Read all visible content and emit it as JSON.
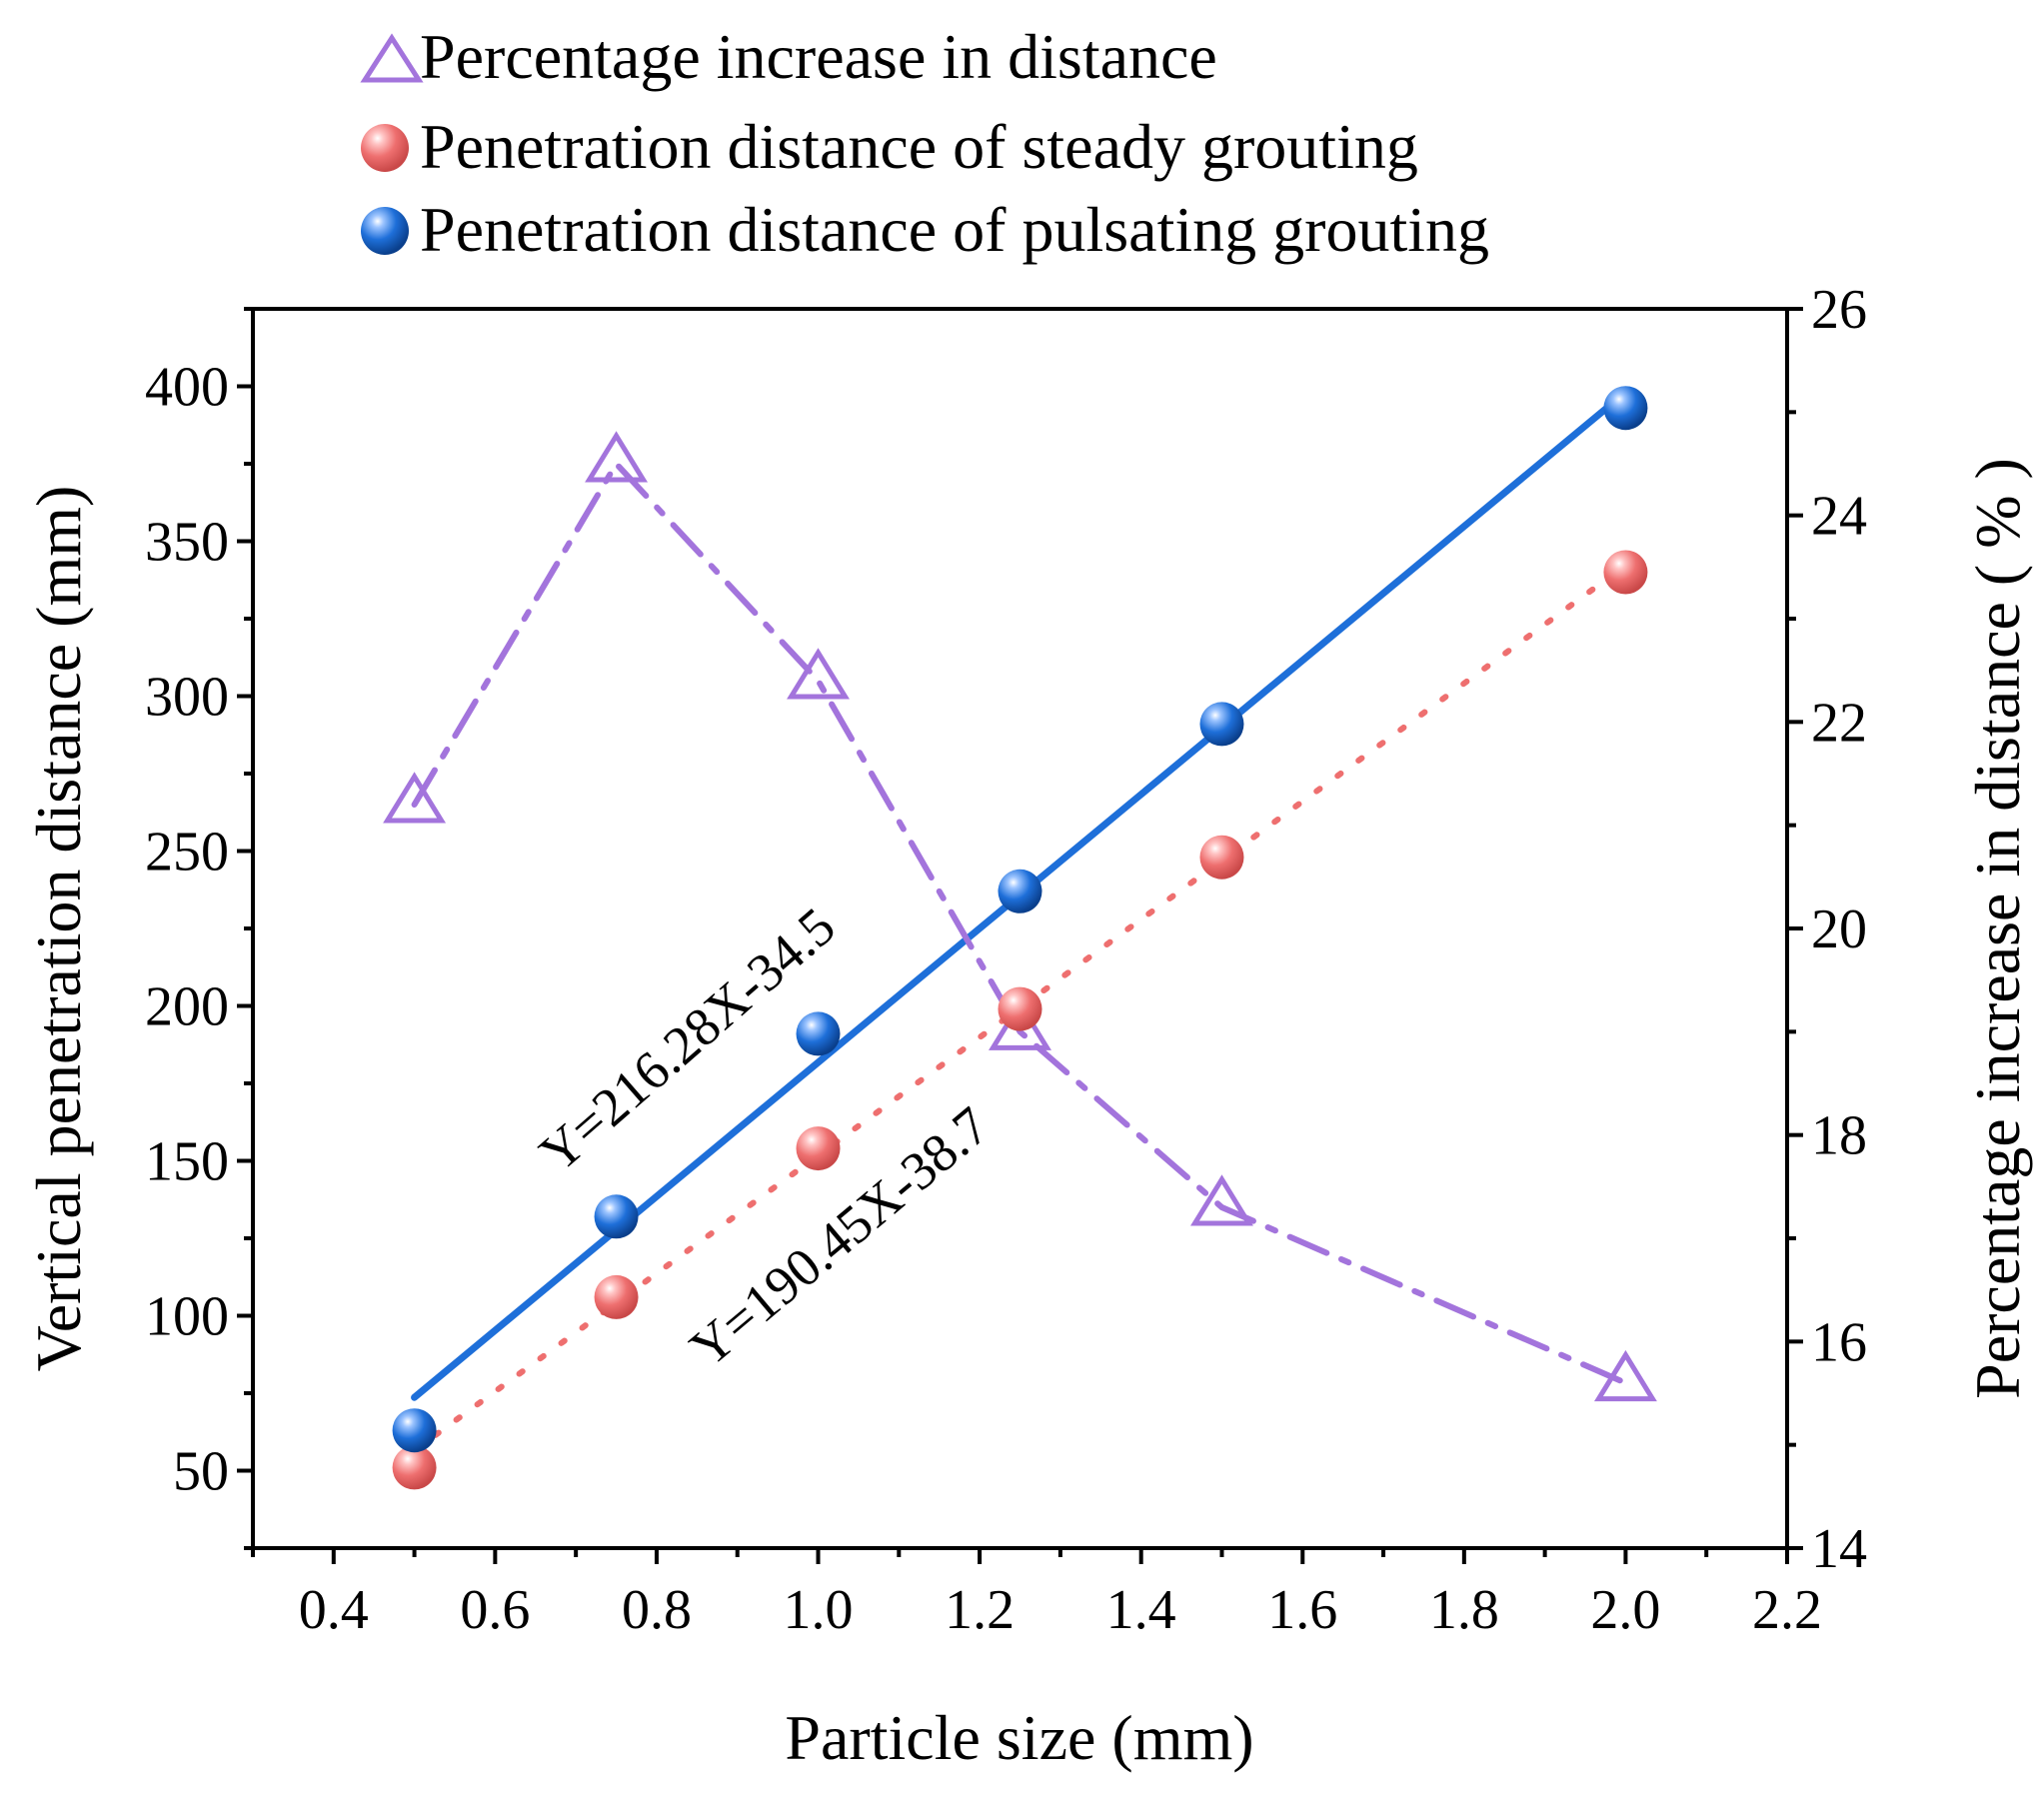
{
  "chart_data": {
    "type": "line",
    "xlabel": "Particle size (mm)",
    "ylabel": "Vertical penetration distance (mm)",
    "y2label": "Percentage increase in distance ( % )",
    "xlim": [
      0.3,
      2.2
    ],
    "ylim": [
      25,
      425
    ],
    "y2lim": [
      14,
      26
    ],
    "xticks": [
      0.4,
      0.6,
      0.8,
      1.0,
      1.2,
      1.4,
      1.6,
      1.8,
      2.0,
      2.2
    ],
    "xtick_labels": [
      "0.4",
      "0.6",
      "0.8",
      "1.0",
      "1.2",
      "1.4",
      "1.6",
      "1.8",
      "2.0",
      "2.2"
    ],
    "yticks": [
      50,
      100,
      150,
      200,
      250,
      300,
      350,
      400
    ],
    "ytick_labels": [
      "50",
      "100",
      "150",
      "200",
      "250",
      "300",
      "350",
      "400"
    ],
    "y2ticks": [
      14,
      16,
      18,
      20,
      22,
      24,
      26
    ],
    "y2tick_labels": [
      "14",
      "16",
      "18",
      "20",
      "22",
      "24",
      "26"
    ],
    "legend_position": "top",
    "series": [
      {
        "name": "Percentage increase in distance",
        "axis": "right",
        "marker": "open-triangle",
        "line_style": "dash-dot",
        "color": "#a374dc",
        "x": [
          0.5,
          0.75,
          1.0,
          1.25,
          1.5,
          2.0
        ],
        "values": [
          21.2,
          24.5,
          22.4,
          19.0,
          17.3,
          15.6
        ]
      },
      {
        "name": "Penetration distance of steady grouting",
        "axis": "left",
        "marker": "sphere",
        "color": "#ee6f6f",
        "x": [
          0.5,
          0.75,
          1.0,
          1.25,
          1.5,
          2.0
        ],
        "values": [
          51,
          106,
          154,
          199,
          248,
          340
        ]
      },
      {
        "name": "Penetration distance of pulsating grouting",
        "axis": "left",
        "marker": "sphere",
        "color": "#1e6fd9",
        "x": [
          0.5,
          0.75,
          1.0,
          1.25,
          1.5,
          2.0
        ],
        "values": [
          63,
          132,
          191,
          237,
          291,
          393
        ]
      }
    ],
    "fits": [
      {
        "name": "pulsating fit",
        "label": "Y=216.28X-34.5",
        "slope": 216.28,
        "intercept": -34.5,
        "x_range": [
          0.5,
          2.0
        ],
        "line_style": "solid",
        "color": "#1e6fd9"
      },
      {
        "name": "steady fit",
        "label": "Y=190.45X-38.7",
        "slope": 190.45,
        "intercept": -38.7,
        "x_range": [
          0.5,
          2.0
        ],
        "line_style": "dotted",
        "color": "#ee6f6f"
      }
    ]
  }
}
